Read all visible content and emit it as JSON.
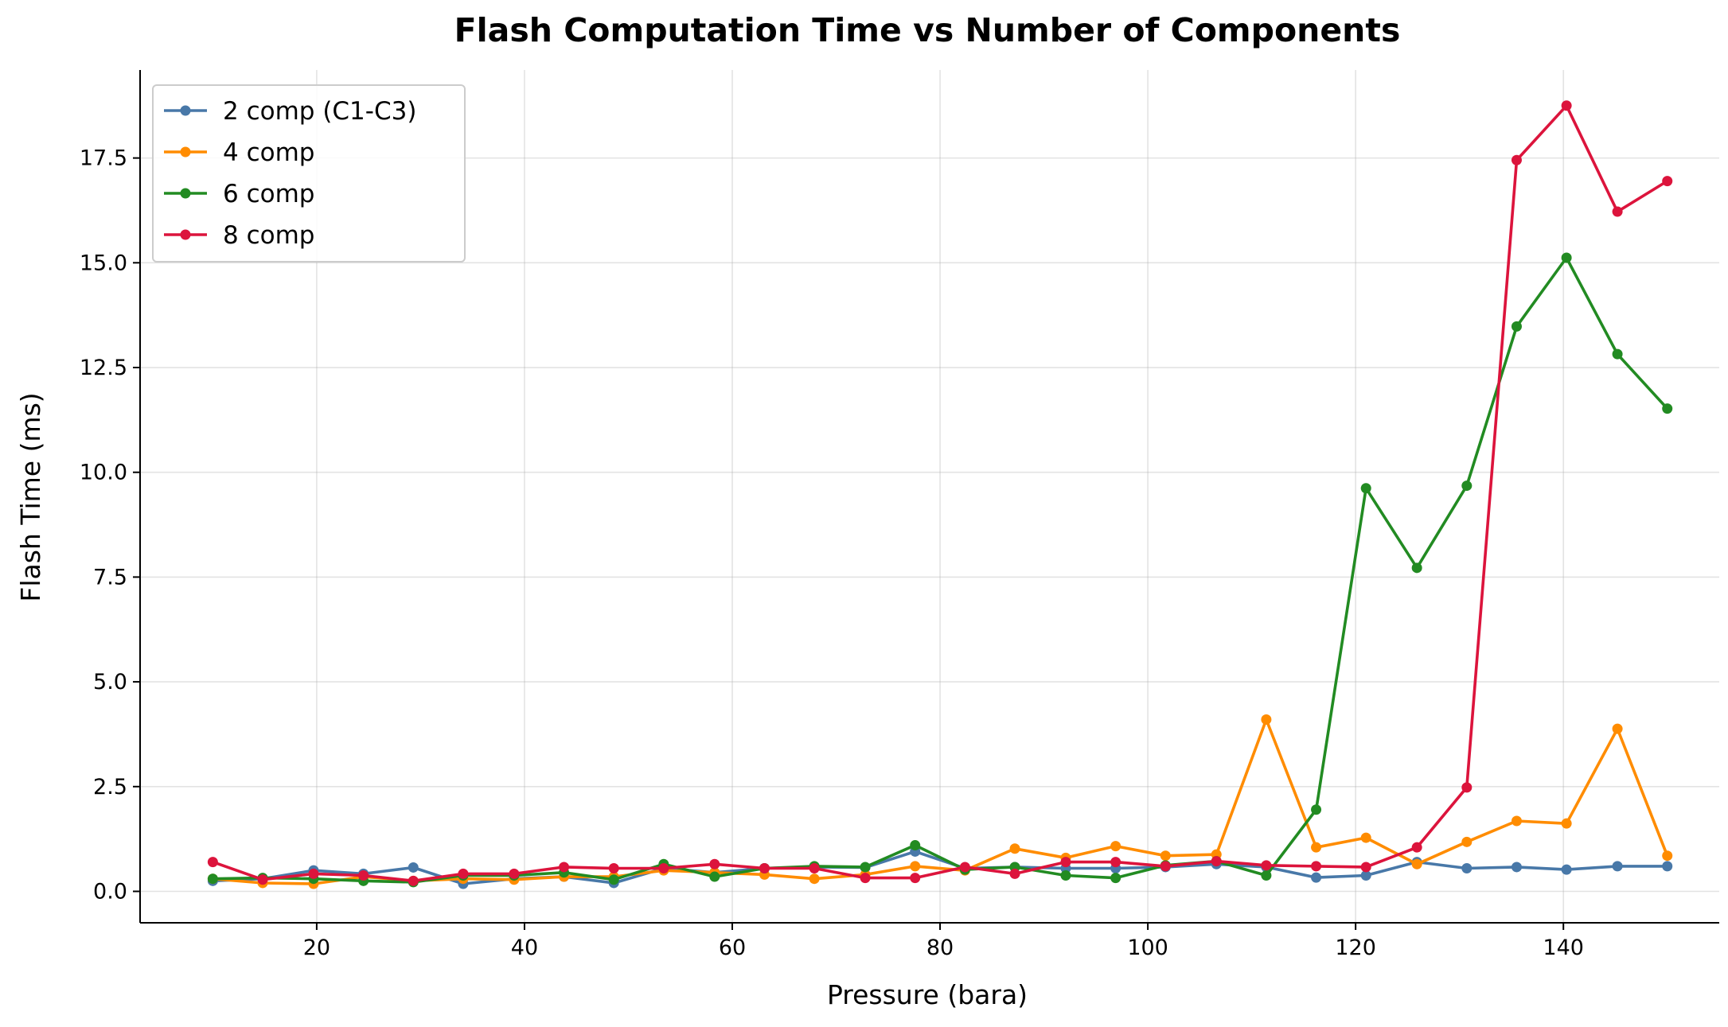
{
  "chart_data": {
    "type": "line",
    "title": "Flash Computation Time vs Number of Components",
    "xlabel": "Pressure (bara)",
    "ylabel": "Flash Time (ms)",
    "xlim": [
      3,
      155
    ],
    "ylim": [
      -0.75,
      19.6
    ],
    "xticks": [
      20,
      40,
      60,
      80,
      100,
      120,
      140
    ],
    "yticks": [
      0.0,
      2.5,
      5.0,
      7.5,
      10.0,
      12.5,
      15.0,
      17.5
    ],
    "grid": true,
    "legend_position": "top-left",
    "x": [
      10.0,
      14.8,
      19.7,
      24.5,
      29.3,
      34.1,
      39.0,
      43.8,
      48.6,
      53.4,
      58.3,
      63.1,
      67.9,
      72.8,
      77.6,
      82.4,
      87.2,
      92.1,
      96.9,
      101.7,
      106.6,
      111.4,
      116.2,
      121.0,
      125.9,
      130.7,
      135.5,
      140.3,
      145.2,
      150.0
    ],
    "series": [
      {
        "name": "2 comp (C1-C3)",
        "color": "#4878A8",
        "values": [
          0.25,
          0.3,
          0.5,
          0.42,
          0.57,
          0.18,
          0.3,
          0.35,
          0.2,
          0.55,
          0.45,
          0.55,
          0.58,
          0.57,
          0.95,
          0.55,
          0.58,
          0.55,
          0.55,
          0.58,
          0.65,
          0.58,
          0.33,
          0.38,
          0.7,
          0.55,
          0.58,
          0.52,
          0.6,
          0.6
        ]
      },
      {
        "name": "4 comp",
        "color": "#FF8C00",
        "values": [
          0.3,
          0.2,
          0.18,
          0.35,
          0.25,
          0.3,
          0.28,
          0.35,
          0.35,
          0.5,
          0.45,
          0.4,
          0.3,
          0.4,
          0.6,
          0.5,
          1.02,
          0.8,
          1.08,
          0.85,
          0.88,
          4.1,
          1.05,
          1.28,
          0.65,
          1.18,
          1.68,
          1.62,
          3.88,
          0.85
        ]
      },
      {
        "name": "6 comp",
        "color": "#228B22",
        "values": [
          0.3,
          0.32,
          0.3,
          0.25,
          0.22,
          0.38,
          0.38,
          0.45,
          0.28,
          0.65,
          0.35,
          0.55,
          0.6,
          0.58,
          1.1,
          0.52,
          0.58,
          0.38,
          0.32,
          0.62,
          0.72,
          0.38,
          1.95,
          9.62,
          7.72,
          9.68,
          13.48,
          15.12,
          12.82,
          11.52
        ]
      },
      {
        "name": "8 comp",
        "color": "#DC143C",
        "values": [
          0.7,
          0.28,
          0.42,
          0.38,
          0.25,
          0.42,
          0.42,
          0.58,
          0.55,
          0.55,
          0.65,
          0.55,
          0.55,
          0.32,
          0.32,
          0.58,
          0.42,
          0.7,
          0.7,
          0.6,
          0.72,
          0.62,
          0.6,
          0.58,
          1.05,
          2.48,
          17.45,
          18.75,
          16.22,
          16.95
        ]
      }
    ]
  }
}
